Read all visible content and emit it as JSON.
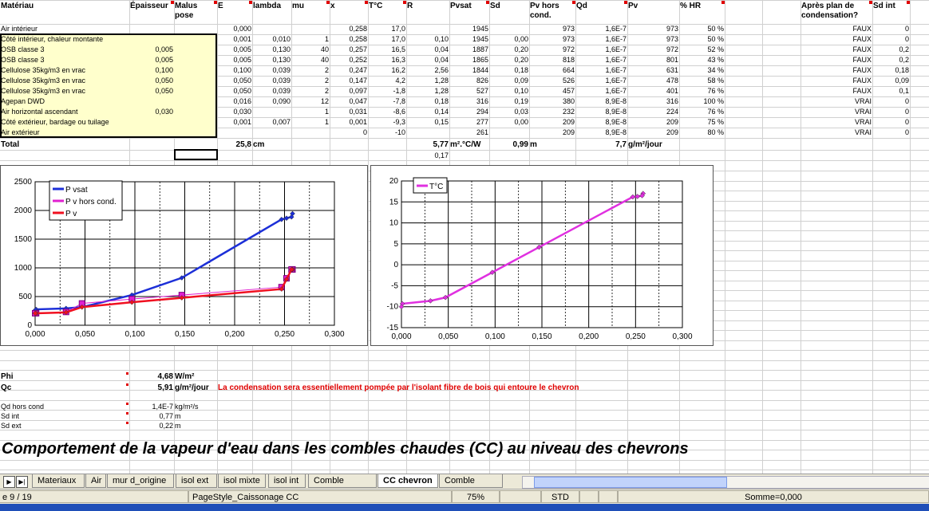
{
  "headers": [
    "Matériau",
    "Épaisseur",
    "Malus pose",
    "E",
    "lambda",
    "mu",
    "x",
    "T°C",
    "R",
    "Pvsat",
    "Sd",
    "Pv hors cond.",
    "Qd",
    "Pv",
    "% HR",
    "",
    "",
    "Après plan de condensation?",
    "Sd int"
  ],
  "rows": [
    [
      "Air intérieur",
      "",
      "",
      "0,000",
      "",
      "",
      "0,258",
      "17,0",
      "",
      "1945",
      "",
      "973",
      "1,6E-7",
      "973",
      "50 %",
      "",
      "",
      "FAUX",
      "0"
    ],
    [
      "Côté intérieur, chaleur montante",
      "",
      "",
      "0,001",
      "0,010",
      "1",
      "0,258",
      "17,0",
      "0,10",
      "1945",
      "0,00",
      "973",
      "1,6E-7",
      "973",
      "50 %",
      "",
      "",
      "FAUX",
      "0"
    ],
    [
      "OSB classe 3",
      "0,005",
      "",
      "0,005",
      "0,130",
      "40",
      "0,257",
      "16,5",
      "0,04",
      "1887",
      "0,20",
      "972",
      "1,6E-7",
      "972",
      "52 %",
      "",
      "",
      "FAUX",
      "0,2"
    ],
    [
      "OSB classe 3",
      "0,005",
      "",
      "0,005",
      "0,130",
      "40",
      "0,252",
      "16,3",
      "0,04",
      "1865",
      "0,20",
      "818",
      "1,6E-7",
      "801",
      "43 %",
      "",
      "",
      "FAUX",
      "0,2"
    ],
    [
      "Cellulose 35kg/m3 en vrac",
      "0,100",
      "",
      "0,100",
      "0,039",
      "2",
      "0,247",
      "16,2",
      "2,56",
      "1844",
      "0,18",
      "664",
      "1,6E-7",
      "631",
      "34 %",
      "",
      "",
      "FAUX",
      "0,18"
    ],
    [
      "Cellulose 35kg/m3 en vrac",
      "0,050",
      "",
      "0,050",
      "0,039",
      "2",
      "0,147",
      "4,2",
      "1,28",
      "826",
      "0,09",
      "526",
      "1,6E-7",
      "478",
      "58 %",
      "",
      "",
      "FAUX",
      "0,09"
    ],
    [
      "Cellulose 35kg/m3 en vrac",
      "0,050",
      "",
      "0,050",
      "0,039",
      "2",
      "0,097",
      "-1,8",
      "1,28",
      "527",
      "0,10",
      "457",
      "1,6E-7",
      "401",
      "76 %",
      "",
      "",
      "FAUX",
      "0,1"
    ],
    [
      "Agepan DWD",
      "",
      "",
      "0,016",
      "0,090",
      "12",
      "0,047",
      "-7,8",
      "0,18",
      "316",
      "0,19",
      "380",
      "8,9E-8",
      "316",
      "100 %",
      "",
      "",
      "VRAI",
      "0"
    ],
    [
      "Air horizontal ascendant",
      "0,030",
      "",
      "0,030",
      "",
      "1",
      "0,031",
      "-8,6",
      "0,14",
      "294",
      "0,03",
      "232",
      "8,9E-8",
      "224",
      "76 %",
      "",
      "",
      "VRAI",
      "0"
    ],
    [
      "Côté extérieur, bardage ou tuilage",
      "",
      "",
      "0,001",
      "0,007",
      "1",
      "0,001",
      "-9,3",
      "0,15",
      "277",
      "0,00",
      "209",
      "8,9E-8",
      "209",
      "75 %",
      "",
      "",
      "VRAI",
      "0"
    ],
    [
      "Air extérieur",
      "",
      "",
      "",
      "",
      "",
      "0",
      "-10",
      "",
      "261",
      "",
      "209",
      "8,9E-8",
      "209",
      "80 %",
      "",
      "",
      "VRAI",
      "0"
    ]
  ],
  "total": {
    "label": "Total",
    "thickness": "25,8",
    "thickness_unit": "cm",
    "R": "5,77",
    "R_unit": "m².°C/W",
    "Sd": "0,99",
    "Sd_unit": "m",
    "Qd": "7,7",
    "Qd_unit": "g/m²/jour",
    "R_extra": "0,17"
  },
  "summary": {
    "phi_label": "Phi",
    "phi_value": "4,68",
    "phi_unit": "W/m²",
    "qc_label": "Qc",
    "qc_value": "5,91",
    "qc_unit": "g/m²/jour",
    "qc_note": "La condensation sera essentiellement pompée par l'isolant fibre de bois qui entoure le chevron",
    "qd_label": "Qd hors cond",
    "qd_value": "1,4E-7",
    "qd_unit": "kg/m²/s",
    "sdint_label": "Sd int",
    "sdint_value": "0,77",
    "sdint_unit": "m",
    "sdext_label": "Sd ext",
    "sdext_value": "0,22",
    "sdext_unit": "m"
  },
  "title": "Comportement de la vapeur d'eau dans les combles chaudes (CC) au niveau des chevrons",
  "chart_data": [
    {
      "type": "line",
      "xlim": [
        0,
        0.3
      ],
      "ylim": [
        0,
        2500
      ],
      "xticks": [
        "0,000",
        "0,050",
        "0,100",
        "0,150",
        "0,200",
        "0,250",
        "0,300"
      ],
      "yticks": [
        "0",
        "500",
        "1000",
        "1500",
        "2000",
        "2500"
      ],
      "grid": true,
      "legend": "top-left",
      "x": [
        0.258,
        0.258,
        0.257,
        0.252,
        0.247,
        0.147,
        0.097,
        0.047,
        0.031,
        0.001,
        0
      ],
      "series": [
        {
          "name": "P vsat",
          "color": "#1c2fd8",
          "values": [
            1945,
            1945,
            1887,
            1865,
            1844,
            826,
            527,
            316,
            294,
            277,
            261
          ]
        },
        {
          "name": "P v hors cond.",
          "color": "#e020d0",
          "values": [
            973,
            973,
            972,
            818,
            664,
            526,
            457,
            380,
            232,
            209,
            209
          ]
        },
        {
          "name": "P v",
          "color": "#f01020",
          "values": [
            973,
            973,
            972,
            801,
            631,
            478,
            401,
            316,
            224,
            209,
            209
          ]
        }
      ]
    },
    {
      "type": "line",
      "xlim": [
        0,
        0.3
      ],
      "ylim": [
        -15,
        20
      ],
      "xticks": [
        "0,000",
        "0,050",
        "0,100",
        "0,150",
        "0,200",
        "0,250",
        "0,300"
      ],
      "yticks": [
        "-15",
        "-10",
        "-5",
        "0",
        "5",
        "10",
        "15",
        "20"
      ],
      "grid": true,
      "legend": "top-left",
      "x": [
        0.258,
        0.258,
        0.257,
        0.252,
        0.247,
        0.147,
        0.097,
        0.047,
        0.031,
        0.001,
        0
      ],
      "series": [
        {
          "name": "T°C",
          "color": "#e030e0",
          "values": [
            17,
            17,
            16.5,
            16.3,
            16.2,
            4.2,
            -1.8,
            -7.8,
            -8.6,
            -9.3,
            -10
          ]
        }
      ]
    }
  ],
  "tabs": [
    "Materiaux",
    "Air",
    "mur d_origine",
    "isol ext",
    "isol mixte",
    "isol int",
    "Comble chaude",
    "CC chevron",
    "Comble froide"
  ],
  "active_tab": "CC chevron",
  "status": {
    "page": "e 9 / 19",
    "pagestyle": "PageStyle_Caissonage CC",
    "zoom": "75%",
    "mode": "STD",
    "sum": "Somme=0,000"
  }
}
